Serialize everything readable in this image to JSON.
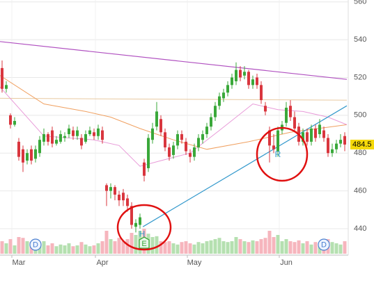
{
  "chart_data": {
    "type": "candlestick",
    "categories": [
      null,
      null,
      null,
      "Mar",
      null,
      null,
      null,
      null,
      null,
      null,
      null,
      null,
      null,
      null,
      null,
      null,
      null,
      null,
      null,
      null,
      null,
      null,
      null,
      "Apr",
      null,
      null,
      null,
      null,
      null,
      null,
      null,
      null,
      null,
      null,
      null,
      null,
      null,
      null,
      null,
      null,
      null,
      null,
      null,
      null,
      null,
      "May",
      null,
      null,
      null,
      null,
      null,
      null,
      null,
      null,
      null,
      null,
      null,
      null,
      null,
      null,
      null,
      null,
      null,
      null,
      null,
      null,
      null,
      "Jun",
      null,
      null,
      null,
      null,
      null,
      null,
      null,
      null,
      null,
      null,
      null,
      null,
      null,
      null,
      null
    ],
    "open": [
      525,
      514,
      500,
      495,
      486,
      482,
      476,
      482,
      477,
      480,
      486,
      490,
      492,
      485,
      486,
      488,
      490,
      492,
      489,
      488,
      486,
      490,
      491,
      489,
      492,
      463,
      460,
      462,
      458,
      459,
      456,
      452,
      441,
      442,
      475,
      472,
      487,
      494,
      498,
      491,
      483,
      479,
      484,
      490,
      486,
      480,
      478,
      483,
      487,
      490,
      494,
      499,
      505,
      509,
      512,
      516,
      518,
      524,
      521,
      523,
      516,
      520,
      516,
      505,
      492,
      484,
      481,
      492,
      496,
      505,
      499,
      494,
      486,
      491,
      486,
      493,
      490,
      492,
      488,
      480,
      482,
      485,
      489
    ],
    "high": [
      529,
      518,
      501,
      499,
      488,
      484,
      482,
      484,
      484,
      489,
      493,
      491,
      494,
      489,
      492,
      491,
      495,
      494,
      494,
      490,
      492,
      494,
      493,
      495,
      494,
      464,
      464,
      463,
      460,
      461,
      458,
      454,
      445,
      448,
      477,
      490,
      496,
      507,
      500,
      493,
      485,
      486,
      492,
      492,
      488,
      482,
      485,
      490,
      492,
      496,
      501,
      507,
      512,
      514,
      518,
      522,
      528,
      526,
      526,
      524,
      521,
      522,
      518,
      507,
      494,
      490,
      494,
      497,
      507,
      508,
      502,
      496,
      493,
      493,
      495,
      495,
      498,
      494,
      490,
      485,
      487,
      490,
      491
    ],
    "low": [
      512,
      512,
      493,
      494,
      476,
      470,
      474,
      474,
      475,
      478,
      484,
      484,
      483,
      484,
      485,
      486,
      488,
      487,
      487,
      482,
      485,
      489,
      487,
      487,
      485,
      452,
      456,
      455,
      452,
      452,
      449,
      440,
      438,
      440,
      465,
      470,
      485,
      492,
      489,
      481,
      476,
      477,
      482,
      485,
      479,
      475,
      476,
      481,
      485,
      488,
      492,
      497,
      503,
      507,
      510,
      514,
      516,
      518,
      519,
      514,
      514,
      514,
      506,
      500,
      475,
      480,
      478,
      490,
      494,
      497,
      491,
      484,
      484,
      484,
      484,
      486,
      488,
      486,
      478,
      478,
      480,
      483,
      481
    ],
    "close": [
      514,
      516,
      495,
      497,
      478,
      475,
      480,
      476,
      482,
      487,
      490,
      486,
      485,
      487,
      490,
      489,
      493,
      489,
      492,
      484,
      490,
      492,
      489,
      493,
      487,
      460,
      462,
      458,
      455,
      455,
      452,
      442,
      443,
      446,
      468,
      488,
      493,
      502,
      491,
      483,
      478,
      484,
      490,
      487,
      481,
      478,
      483,
      488,
      490,
      494,
      499,
      505,
      510,
      512,
      516,
      520,
      524,
      520,
      523,
      516,
      519,
      516,
      508,
      502,
      484,
      482,
      492,
      495,
      504,
      499,
      493,
      486,
      491,
      486,
      493,
      488,
      495,
      488,
      480,
      482,
      485,
      487,
      484.5
    ],
    "volume": [
      30,
      25,
      35,
      20,
      40,
      38,
      30,
      28,
      25,
      22,
      30,
      20,
      25,
      18,
      22,
      20,
      25,
      18,
      20,
      28,
      22,
      18,
      20,
      25,
      30,
      55,
      35,
      30,
      38,
      30,
      35,
      50,
      45,
      55,
      60,
      48,
      40,
      42,
      30,
      28,
      30,
      25,
      22,
      28,
      30,
      25,
      22,
      28,
      25,
      30,
      32,
      35,
      38,
      30,
      28,
      30,
      40,
      35,
      30,
      28,
      32,
      30,
      35,
      38,
      55,
      40,
      45,
      30,
      35,
      30,
      28,
      32,
      25,
      30,
      22,
      28,
      25,
      30,
      35,
      28,
      25,
      22,
      30
    ],
    "up_color": "#3aa83a",
    "down_color": "#d9363e",
    "up_volume_color": "#b5e0b0",
    "down_volume_color": "#f6b5bd",
    "ylim": [
      426,
      561
    ],
    "yticks": [
      440,
      460,
      480,
      500,
      520,
      540,
      560
    ],
    "y2lim": [
      0,
      100
    ],
    "grid": true,
    "lines": [
      {
        "color": "#e8c9a0",
        "x": [
          -0.5,
          82.5
        ],
        "values": [
          509,
          508
        ]
      },
      {
        "color": "#f0a060",
        "x": [
          -0.5,
          10,
          20,
          26,
          33,
          41,
          49,
          59,
          69,
          82.5
        ],
        "values": [
          521,
          506,
          502,
          499,
          493,
          487,
          482,
          486,
          491,
          495
        ]
      },
      {
        "color": "#e89ad8",
        "x": [
          -0.5,
          10,
          22,
          28,
          33,
          38,
          45,
          52,
          60,
          66,
          72,
          78,
          82.5
        ],
        "values": [
          515,
          489,
          487,
          484,
          473,
          476,
          480,
          492,
          506,
          503,
          502,
          499,
          495
        ]
      },
      {
        "color": "#b050c0",
        "x": [
          -0.5,
          82.5
        ],
        "values": [
          539,
          519
        ]
      },
      {
        "color": "#3399cc",
        "x": [
          33.7,
          82.5
        ],
        "values": [
          441,
          505
        ]
      }
    ],
    "events": [
      {
        "label": "D",
        "x": 8
      },
      {
        "label": "H",
        "x": 33.5,
        "value": 437
      },
      {
        "label": "E",
        "x": 34
      },
      {
        "label": "R",
        "x": 66,
        "value": 479
      },
      {
        "label": "D",
        "x": 77
      }
    ]
  }
}
